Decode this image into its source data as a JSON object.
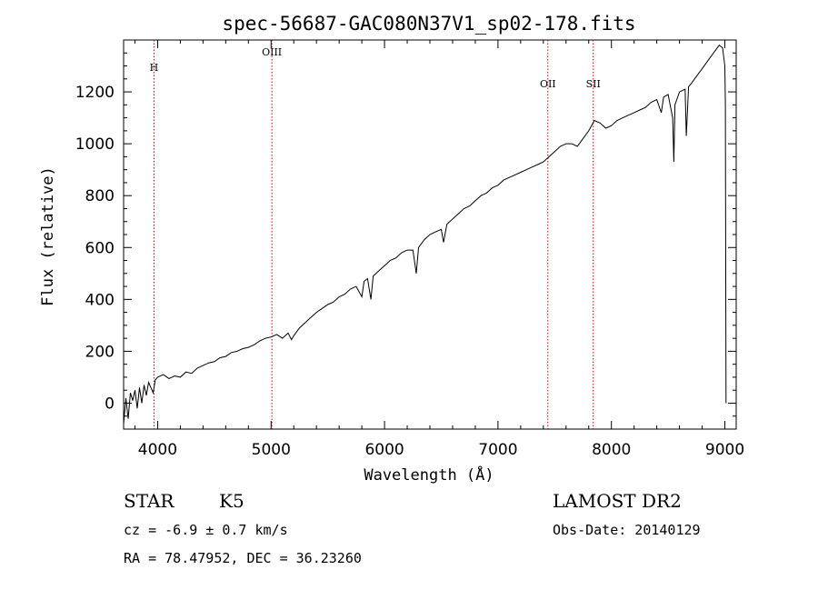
{
  "chart_data": {
    "type": "line",
    "title": "spec-56687-GAC080N37V1_sp02-178.fits",
    "xlabel": "Wavelength (Å)",
    "ylabel": "Flux (relative)",
    "xlim": [
      3700,
      9100
    ],
    "ylim": [
      -100,
      1400
    ],
    "x_ticks": [
      4000,
      5000,
      6000,
      7000,
      8000,
      9000
    ],
    "y_ticks": [
      0,
      200,
      400,
      600,
      800,
      1000,
      1200
    ],
    "grid": false,
    "line_color": "#000000",
    "marker_color": "#cc0000",
    "series": [
      {
        "points": [
          [
            3700,
            -80
          ],
          [
            3720,
            20
          ],
          [
            3740,
            -60
          ],
          [
            3760,
            40
          ],
          [
            3780,
            10
          ],
          [
            3800,
            50
          ],
          [
            3820,
            -20
          ],
          [
            3840,
            60
          ],
          [
            3860,
            0
          ],
          [
            3880,
            70
          ],
          [
            3900,
            30
          ],
          [
            3920,
            80
          ],
          [
            3940,
            60
          ],
          [
            3960,
            40
          ],
          [
            3980,
            90
          ],
          [
            4000,
            100
          ],
          [
            4050,
            110
          ],
          [
            4100,
            95
          ],
          [
            4150,
            105
          ],
          [
            4200,
            100
          ],
          [
            4250,
            120
          ],
          [
            4300,
            115
          ],
          [
            4350,
            135
          ],
          [
            4400,
            145
          ],
          [
            4450,
            155
          ],
          [
            4500,
            160
          ],
          [
            4550,
            175
          ],
          [
            4600,
            180
          ],
          [
            4650,
            195
          ],
          [
            4700,
            200
          ],
          [
            4750,
            210
          ],
          [
            4800,
            215
          ],
          [
            4850,
            225
          ],
          [
            4900,
            240
          ],
          [
            4950,
            250
          ],
          [
            5000,
            255
          ],
          [
            5050,
            265
          ],
          [
            5100,
            250
          ],
          [
            5150,
            270
          ],
          [
            5180,
            245
          ],
          [
            5200,
            260
          ],
          [
            5250,
            290
          ],
          [
            5300,
            310
          ],
          [
            5350,
            330
          ],
          [
            5400,
            350
          ],
          [
            5450,
            365
          ],
          [
            5500,
            380
          ],
          [
            5550,
            390
          ],
          [
            5600,
            410
          ],
          [
            5650,
            420
          ],
          [
            5700,
            440
          ],
          [
            5750,
            450
          ],
          [
            5800,
            410
          ],
          [
            5820,
            470
          ],
          [
            5850,
            480
          ],
          [
            5880,
            400
          ],
          [
            5900,
            490
          ],
          [
            5950,
            510
          ],
          [
            6000,
            530
          ],
          [
            6050,
            550
          ],
          [
            6100,
            560
          ],
          [
            6150,
            580
          ],
          [
            6200,
            590
          ],
          [
            6250,
            590
          ],
          [
            6280,
            500
          ],
          [
            6300,
            600
          ],
          [
            6350,
            630
          ],
          [
            6400,
            650
          ],
          [
            6450,
            660
          ],
          [
            6500,
            670
          ],
          [
            6520,
            620
          ],
          [
            6550,
            690
          ],
          [
            6600,
            710
          ],
          [
            6650,
            730
          ],
          [
            6700,
            750
          ],
          [
            6750,
            760
          ],
          [
            6800,
            780
          ],
          [
            6850,
            800
          ],
          [
            6900,
            810
          ],
          [
            6950,
            830
          ],
          [
            7000,
            840
          ],
          [
            7050,
            860
          ],
          [
            7100,
            870
          ],
          [
            7150,
            880
          ],
          [
            7200,
            890
          ],
          [
            7250,
            900
          ],
          [
            7300,
            910
          ],
          [
            7350,
            920
          ],
          [
            7400,
            930
          ],
          [
            7450,
            950
          ],
          [
            7500,
            970
          ],
          [
            7550,
            990
          ],
          [
            7600,
            1000
          ],
          [
            7650,
            1000
          ],
          [
            7700,
            990
          ],
          [
            7750,
            1020
          ],
          [
            7800,
            1050
          ],
          [
            7850,
            1090
          ],
          [
            7900,
            1080
          ],
          [
            7950,
            1060
          ],
          [
            8000,
            1070
          ],
          [
            8050,
            1090
          ],
          [
            8100,
            1100
          ],
          [
            8150,
            1110
          ],
          [
            8200,
            1120
          ],
          [
            8250,
            1130
          ],
          [
            8300,
            1140
          ],
          [
            8350,
            1160
          ],
          [
            8400,
            1170
          ],
          [
            8440,
            1120
          ],
          [
            8460,
            1180
          ],
          [
            8500,
            1190
          ],
          [
            8540,
            1100
          ],
          [
            8550,
            930
          ],
          [
            8560,
            1150
          ],
          [
            8600,
            1200
          ],
          [
            8650,
            1210
          ],
          [
            8660,
            1030
          ],
          [
            8680,
            1220
          ],
          [
            8700,
            1230
          ],
          [
            8750,
            1260
          ],
          [
            8800,
            1290
          ],
          [
            8850,
            1320
          ],
          [
            8900,
            1350
          ],
          [
            8950,
            1380
          ],
          [
            8980,
            1370
          ],
          [
            9000,
            1300
          ],
          [
            9005,
            1150
          ],
          [
            9010,
            0
          ]
        ]
      }
    ],
    "lines": [
      {
        "label": "H",
        "x": 3968
      },
      {
        "label": "OIII",
        "x": 5007
      },
      {
        "label": "OII",
        "x": 7440
      },
      {
        "label": "SII",
        "x": 7840
      }
    ]
  },
  "footer": {
    "class_label": "STAR",
    "subclass": "K5",
    "cz": "cz = -6.9 ± 0.7 km/s",
    "coords": "RA =  78.47952, DEC =  36.23260",
    "survey": "LAMOST DR2",
    "obs_date": "Obs-Date: 20140129"
  }
}
